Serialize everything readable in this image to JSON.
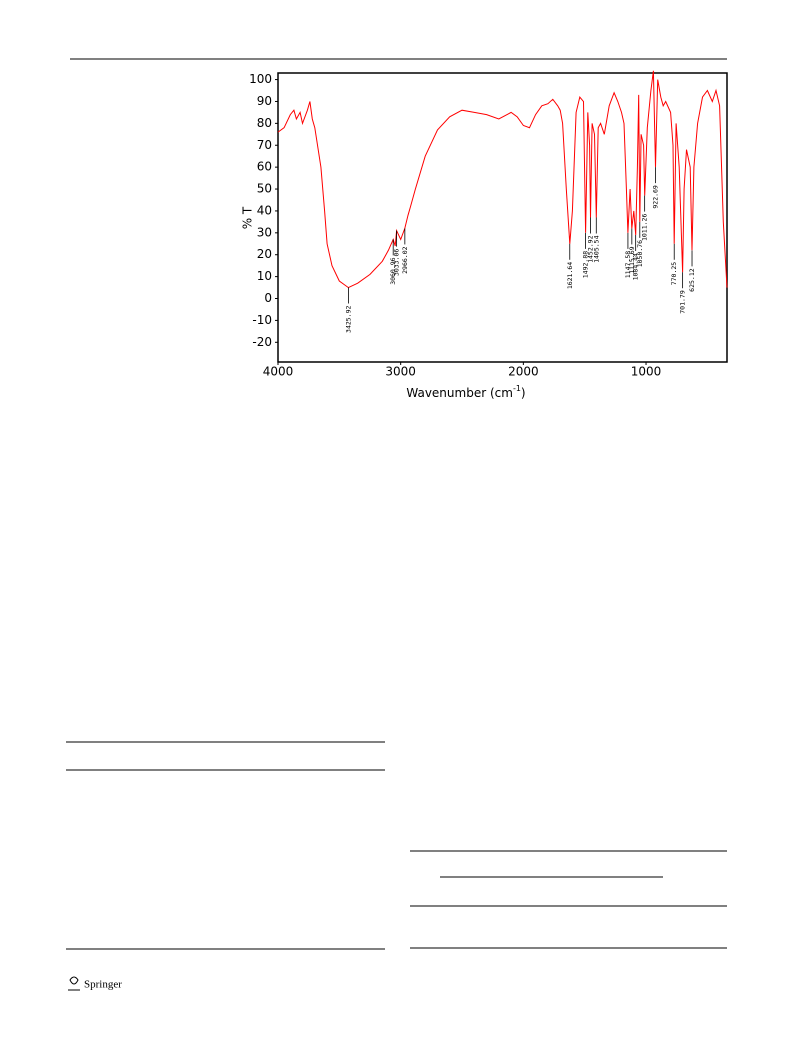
{
  "chart_data": {
    "type": "line",
    "xlabel": "Wavenumber (cm",
    "xlabel_sup": "-1",
    "xlabel_end": ")",
    "ylabel": "% T",
    "color": "#ff0000",
    "x": [
      4000,
      3950,
      3900,
      3870,
      3850,
      3820,
      3800,
      3760,
      3740,
      3720,
      3700,
      3650,
      3620,
      3600,
      3560,
      3500,
      3425.92,
      3350,
      3250,
      3150,
      3100,
      3060.96,
      3045,
      3033.06,
      3000,
      2966.02,
      2940,
      2920,
      2880,
      2800,
      2700,
      2600,
      2500,
      2400,
      2300,
      2200,
      2100,
      2050,
      2000,
      1950,
      1900,
      1850,
      1800,
      1760,
      1720,
      1700,
      1680,
      1650,
      1621.64,
      1600,
      1570,
      1540,
      1510,
      1492.88,
      1475,
      1460,
      1452.92,
      1440,
      1420,
      1405.54,
      1390,
      1370,
      1340,
      1300,
      1260,
      1230,
      1200,
      1180,
      1160,
      1147.58,
      1130,
      1115.69,
      1100,
      1084.44,
      1070,
      1060,
      1050.76,
      1040,
      1020,
      1011.26,
      990,
      960,
      940,
      922.69,
      905,
      880,
      860,
      840,
      800,
      780,
      770.25,
      755,
      730,
      701.79,
      690,
      670,
      640,
      625.12,
      610,
      580,
      540,
      500,
      460,
      430,
      400,
      370,
      340
    ],
    "values": [
      76,
      78,
      84,
      86,
      82,
      85,
      80,
      86,
      90,
      82,
      78,
      60,
      40,
      25,
      15,
      8,
      5,
      7,
      11,
      17,
      22,
      27,
      24,
      31,
      27,
      32,
      38,
      42,
      50,
      65,
      77,
      83,
      86,
      85,
      84,
      82,
      85,
      83,
      79,
      78,
      84,
      88,
      89,
      91,
      88,
      86,
      80,
      50,
      25,
      40,
      85,
      92,
      90,
      30,
      85,
      70,
      37,
      80,
      75,
      37,
      78,
      80,
      75,
      88,
      94,
      90,
      85,
      80,
      50,
      30,
      50,
      32,
      40,
      29,
      60,
      93,
      35,
      75,
      70,
      47,
      78,
      95,
      104,
      60,
      100,
      92,
      88,
      90,
      85,
      70,
      25,
      80,
      60,
      12,
      50,
      68,
      60,
      22,
      60,
      80,
      92,
      95,
      90,
      95,
      88,
      35,
      5
    ],
    "peaks": [
      3425.92,
      3060.96,
      3033.06,
      2966.02,
      1621.64,
      1492.88,
      1452.92,
      1405.54,
      1147.58,
      1115.69,
      1084.44,
      1050.76,
      1011.26,
      922.69,
      770.25,
      701.79,
      625.12
    ],
    "xlim": [
      4000,
      340
    ],
    "ylim": [
      -29,
      103
    ],
    "xticks": [
      4000,
      3000,
      2000,
      1000
    ],
    "yticks": [
      -20,
      -10,
      0,
      10,
      20,
      30,
      40,
      50,
      60,
      70,
      80,
      90,
      100
    ]
  },
  "footer": {
    "publisher": "Springer"
  }
}
